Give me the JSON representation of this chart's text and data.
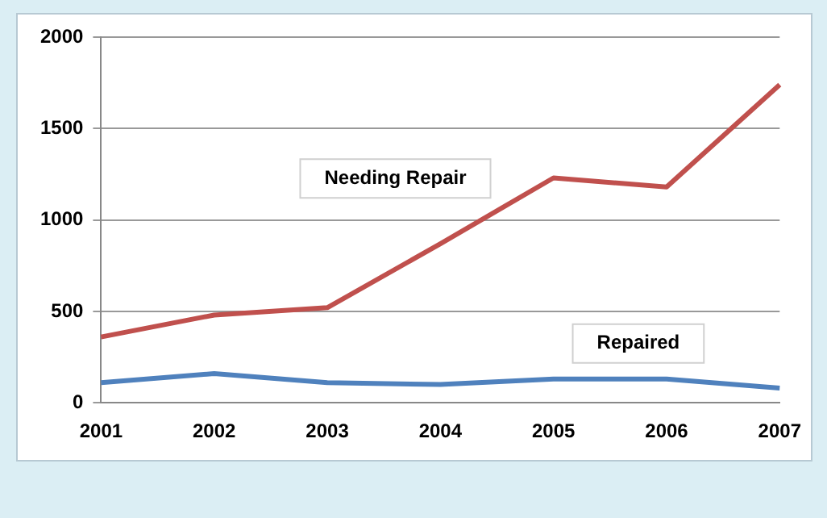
{
  "chart_data": {
    "type": "line",
    "categories": [
      "2001",
      "2002",
      "2003",
      "2004",
      "2005",
      "2006",
      "2007"
    ],
    "series": [
      {
        "name": "Needing Repair",
        "color": "#c0504d",
        "values": [
          360,
          480,
          520,
          870,
          1230,
          1180,
          1740
        ]
      },
      {
        "name": "Repaired",
        "color": "#4f81bd",
        "values": [
          110,
          160,
          110,
          100,
          130,
          130,
          80
        ]
      }
    ],
    "ylim": [
      0,
      2000
    ],
    "yticks": [
      0,
      500,
      1000,
      1500,
      2000
    ],
    "grid": "y",
    "legend": false,
    "marker": "none"
  }
}
